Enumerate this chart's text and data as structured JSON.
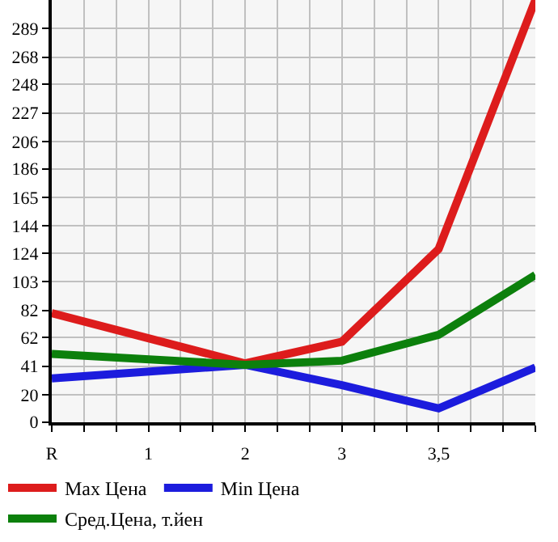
{
  "chart_data": {
    "type": "line",
    "categories": [
      "R",
      "1",
      "2",
      "3",
      "3,5",
      null
    ],
    "series": [
      {
        "name": "Max Цена",
        "color": "#dd1c1c",
        "values": [
          80,
          null,
          43,
          59,
          127,
          310
        ]
      },
      {
        "name": "Min Цена",
        "color": "#1c1cdd",
        "values": [
          32,
          null,
          42,
          27,
          10,
          40
        ]
      },
      {
        "name": "Сред.Цена, т.йен",
        "color": "#0c800c",
        "values": [
          50,
          null,
          42,
          45,
          64,
          108
        ]
      }
    ],
    "ylim": [
      0,
      310
    ],
    "yticks": [
      0,
      20,
      41,
      62,
      82,
      103,
      124,
      144,
      165,
      186,
      206,
      227,
      248,
      268,
      289
    ],
    "grid": true,
    "legend": "bottom",
    "marker": "none",
    "line_style": "solid"
  }
}
